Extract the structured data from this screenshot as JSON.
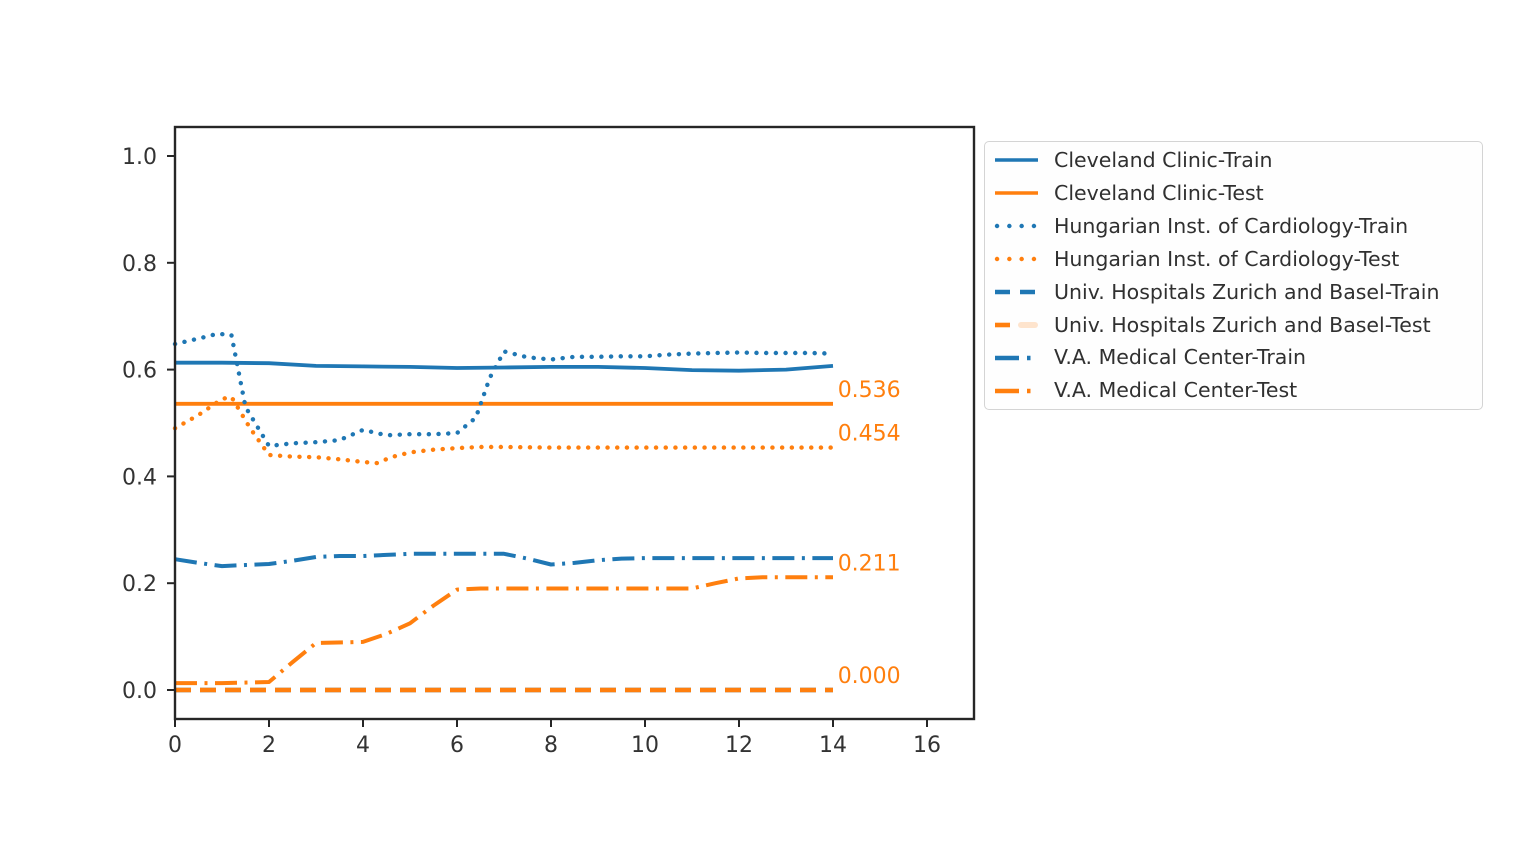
{
  "figure": {
    "background_color": "#ffffff",
    "title": ""
  },
  "colors": {
    "train_blue": "#1f77b4",
    "test_orange": "#ff7f0e",
    "axis_color": "#262626",
    "tick_label_color": "#333333",
    "annotation_color": "#ff7f0e",
    "legend_border_color": "#d4d4d4",
    "legend_text_color": "#303030"
  },
  "chart_data": {
    "type": "line",
    "title": "",
    "xlabel": "",
    "ylabel": "",
    "xlim": [
      0,
      17
    ],
    "ylim": [
      -0.05,
      1.05
    ],
    "grid": false,
    "x_ticks": [
      "0",
      "2",
      "4",
      "6",
      "8",
      "10",
      "12",
      "14",
      "16"
    ],
    "y_ticks": [
      "0.0",
      "0.2",
      "0.4",
      "0.6",
      "0.8",
      "1.0"
    ],
    "legend_position": "outside upper right",
    "series": [
      {
        "name": "Cleveland Clinic-Train",
        "color": "#1f77b4",
        "linestyle": "solid",
        "points": [
          [
            0,
            0.613
          ],
          [
            1,
            0.613
          ],
          [
            2,
            0.612
          ],
          [
            3,
            0.607
          ],
          [
            4,
            0.606
          ],
          [
            5,
            0.605
          ],
          [
            6,
            0.603
          ],
          [
            7,
            0.604
          ],
          [
            8,
            0.605
          ],
          [
            9,
            0.605
          ],
          [
            10,
            0.603
          ],
          [
            11,
            0.599
          ],
          [
            12,
            0.598
          ],
          [
            13,
            0.6
          ],
          [
            14,
            0.607
          ]
        ]
      },
      {
        "name": "Cleveland Clinic-Test",
        "color": "#ff7f0e",
        "linestyle": "solid",
        "points": [
          [
            0,
            0.536
          ],
          [
            1,
            0.536
          ],
          [
            2,
            0.536
          ],
          [
            3,
            0.536
          ],
          [
            4,
            0.536
          ],
          [
            5,
            0.536
          ],
          [
            6,
            0.536
          ],
          [
            7,
            0.536
          ],
          [
            8,
            0.536
          ],
          [
            9,
            0.536
          ],
          [
            10,
            0.536
          ],
          [
            11,
            0.536
          ],
          [
            12,
            0.536
          ],
          [
            13,
            0.536
          ],
          [
            14,
            0.536
          ]
        ]
      },
      {
        "name": "Hungarian Inst. of Cardiology-Train",
        "color": "#1f77b4",
        "linestyle": "dotted",
        "points": [
          [
            0,
            0.648
          ],
          [
            0.5,
            0.658
          ],
          [
            0.9,
            0.667
          ],
          [
            1.2,
            0.665
          ],
          [
            1.5,
            0.53
          ],
          [
            2,
            0.457
          ],
          [
            2.5,
            0.462
          ],
          [
            3,
            0.464
          ],
          [
            3.5,
            0.468
          ],
          [
            4,
            0.487
          ],
          [
            4.5,
            0.477
          ],
          [
            5,
            0.479
          ],
          [
            5.5,
            0.479
          ],
          [
            6,
            0.481
          ],
          [
            6.4,
            0.51
          ],
          [
            6.7,
            0.585
          ],
          [
            7,
            0.634
          ],
          [
            7.5,
            0.623
          ],
          [
            8,
            0.619
          ],
          [
            8.5,
            0.624
          ],
          [
            9,
            0.624
          ],
          [
            9.5,
            0.625
          ],
          [
            10,
            0.625
          ],
          [
            10.5,
            0.628
          ],
          [
            11,
            0.63
          ],
          [
            11.5,
            0.631
          ],
          [
            12,
            0.632
          ],
          [
            12.5,
            0.631
          ],
          [
            13,
            0.631
          ],
          [
            13.5,
            0.631
          ],
          [
            14,
            0.63
          ]
        ]
      },
      {
        "name": "Hungarian Inst. of Cardiology-Test",
        "color": "#ff7f0e",
        "linestyle": "dotted",
        "points": [
          [
            0,
            0.49
          ],
          [
            0.5,
            0.515
          ],
          [
            1,
            0.545
          ],
          [
            1.2,
            0.549
          ],
          [
            1.6,
            0.49
          ],
          [
            2,
            0.44
          ],
          [
            2.5,
            0.437
          ],
          [
            3,
            0.436
          ],
          [
            3.5,
            0.432
          ],
          [
            4,
            0.427
          ],
          [
            4.3,
            0.425
          ],
          [
            4.6,
            0.436
          ],
          [
            5,
            0.445
          ],
          [
            5.5,
            0.45
          ],
          [
            6,
            0.453
          ],
          [
            6.5,
            0.455
          ],
          [
            7,
            0.455
          ],
          [
            8,
            0.454
          ],
          [
            9,
            0.454
          ],
          [
            10,
            0.454
          ],
          [
            11,
            0.454
          ],
          [
            12,
            0.454
          ],
          [
            13,
            0.454
          ],
          [
            14,
            0.454
          ]
        ]
      },
      {
        "name": "Univ. Hospitals Zurich and Basel-Train",
        "color": "#1f77b4",
        "linestyle": "dashed",
        "points": [
          [
            0,
            0.0
          ],
          [
            1,
            0.0
          ],
          [
            2,
            0.0
          ],
          [
            3,
            0.0
          ],
          [
            4,
            0.0
          ],
          [
            5,
            0.0
          ],
          [
            6,
            0.0
          ],
          [
            7,
            0.0
          ],
          [
            8,
            0.0
          ],
          [
            9,
            0.0
          ],
          [
            10,
            0.0
          ],
          [
            11,
            0.0
          ],
          [
            12,
            0.0
          ],
          [
            13,
            0.0
          ],
          [
            14,
            0.0
          ]
        ]
      },
      {
        "name": "Univ. Hospitals Zurich and Basel-Test",
        "color": "#ff7f0e",
        "linestyle": "dashed",
        "points": [
          [
            0,
            0.0
          ],
          [
            1,
            0.0
          ],
          [
            2,
            0.0
          ],
          [
            3,
            0.0
          ],
          [
            4,
            0.0
          ],
          [
            5,
            0.0
          ],
          [
            6,
            0.0
          ],
          [
            7,
            0.0
          ],
          [
            8,
            0.0
          ],
          [
            9,
            0.0
          ],
          [
            10,
            0.0
          ],
          [
            11,
            0.0
          ],
          [
            12,
            0.0
          ],
          [
            13,
            0.0
          ],
          [
            14,
            0.0
          ]
        ]
      },
      {
        "name": "V.A. Medical Center-Train",
        "color": "#1f77b4",
        "linestyle": "dashdot",
        "points": [
          [
            0,
            0.245
          ],
          [
            0.5,
            0.238
          ],
          [
            1,
            0.232
          ],
          [
            1.5,
            0.234
          ],
          [
            2,
            0.236
          ],
          [
            2.5,
            0.242
          ],
          [
            3,
            0.249
          ],
          [
            3.5,
            0.251
          ],
          [
            4,
            0.251
          ],
          [
            4.5,
            0.253
          ],
          [
            5,
            0.255
          ],
          [
            5.5,
            0.255
          ],
          [
            6,
            0.255
          ],
          [
            6.5,
            0.255
          ],
          [
            7,
            0.255
          ],
          [
            7.5,
            0.246
          ],
          [
            8,
            0.235
          ],
          [
            8.5,
            0.238
          ],
          [
            9,
            0.243
          ],
          [
            9.5,
            0.246
          ],
          [
            10,
            0.247
          ],
          [
            11,
            0.247
          ],
          [
            12,
            0.247
          ],
          [
            13,
            0.247
          ],
          [
            14,
            0.247
          ]
        ]
      },
      {
        "name": "V.A. Medical Center-Test",
        "color": "#ff7f0e",
        "linestyle": "dashdot",
        "points": [
          [
            0,
            0.013
          ],
          [
            1,
            0.013
          ],
          [
            2,
            0.015
          ],
          [
            2.5,
            0.052
          ],
          [
            3,
            0.088
          ],
          [
            4,
            0.09
          ],
          [
            4.5,
            0.105
          ],
          [
            5,
            0.125
          ],
          [
            5.5,
            0.158
          ],
          [
            6,
            0.188
          ],
          [
            6.5,
            0.19
          ],
          [
            7,
            0.19
          ],
          [
            8,
            0.19
          ],
          [
            9,
            0.19
          ],
          [
            10,
            0.19
          ],
          [
            11,
            0.19
          ],
          [
            11.5,
            0.2
          ],
          [
            12,
            0.209
          ],
          [
            12.5,
            0.211
          ],
          [
            13,
            0.211
          ],
          [
            14,
            0.211
          ]
        ]
      }
    ],
    "annotations": [
      {
        "label": "0.536",
        "x": 14.1,
        "y": 0.536,
        "color": "#ff7f0e"
      },
      {
        "label": "0.454",
        "x": 14.1,
        "y": 0.454,
        "color": "#ff7f0e"
      },
      {
        "label": "0.211",
        "x": 14.1,
        "y": 0.211,
        "color": "#ff7f0e"
      },
      {
        "label": "0.000",
        "x": 14.1,
        "y": 0.0,
        "color": "#ff7f0e"
      }
    ]
  },
  "legend": {
    "items": [
      {
        "label": "Cleveland Clinic-Train",
        "color": "#1f77b4",
        "linestyle": "solid"
      },
      {
        "label": "Cleveland Clinic-Test",
        "color": "#ff7f0e",
        "linestyle": "solid"
      },
      {
        "label": "Hungarian Inst. of Cardiology-Train",
        "color": "#1f77b4",
        "linestyle": "dotted"
      },
      {
        "label": "Hungarian Inst. of Cardiology-Test",
        "color": "#ff7f0e",
        "linestyle": "dotted"
      },
      {
        "label": "Univ. Hospitals Zurich and Basel-Train",
        "color": "#1f77b4",
        "linestyle": "dashed"
      },
      {
        "label": "Univ. Hospitals Zurich and Basel-Test",
        "color": "#ff7f0e",
        "linestyle": "dashed",
        "faded_second_dash": true
      },
      {
        "label": "V.A. Medical Center-Train",
        "color": "#1f77b4",
        "linestyle": "dashdot"
      },
      {
        "label": "V.A. Medical Center-Test",
        "color": "#ff7f0e",
        "linestyle": "dashdot"
      }
    ]
  }
}
